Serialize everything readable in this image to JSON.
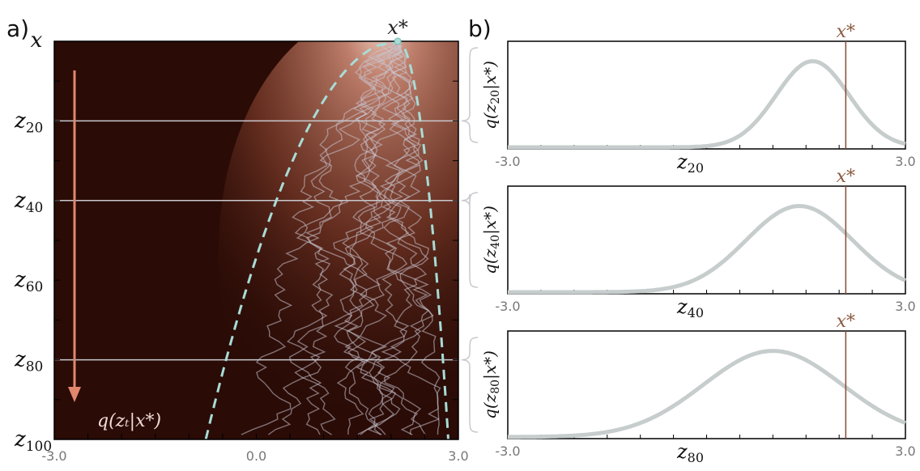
{
  "chart_data": [
    {
      "type": "heatmap",
      "panel_label": "a)",
      "x_tick_labels": [
        "-3.0",
        "0.0",
        "3.0"
      ],
      "xlim": [
        -3.0,
        3.0
      ],
      "y_labels": {
        "top": "x",
        "ticks": [
          {
            "t": 20,
            "label": "z",
            "sub": "20"
          },
          {
            "t": 40,
            "label": "z",
            "sub": "40"
          },
          {
            "t": 60,
            "label": "z",
            "sub": "60"
          },
          {
            "t": 80,
            "label": "z",
            "sub": "80"
          },
          {
            "t": 100,
            "label": "z",
            "sub": "100"
          }
        ]
      },
      "ylim": [
        0,
        100
      ],
      "x_star_label": "x*",
      "x_star_value": 2.1,
      "annotation": "q(z_t|x*)",
      "horizontal_lines_at_t": [
        20,
        40,
        80
      ],
      "envelope": {
        "top_x": 2.1,
        "left_x_at_100": -0.75,
        "right_x_at_100": 2.85
      },
      "colors": {
        "background": "#2a0b06",
        "glow": "#b9745f",
        "envelope": "#a8dcd6",
        "arrow": "#e0876e",
        "trajectory": "#c8c4cf"
      }
    },
    {
      "type": "line",
      "panel_label": "b)",
      "x_tick_labels": [
        "-3.0",
        "3.0"
      ],
      "xlim": [
        -3.0,
        3.0
      ],
      "x_star_label": "x*",
      "x_star_value": 2.1,
      "colors": {
        "curve": "#c6cdcc",
        "x_star_line": "#8a4a30",
        "x_star_text": "#8a5a40"
      },
      "panels": [
        {
          "xlabel": "z",
          "xlabel_sub": "20",
          "ylabel": "q(z20|x*)",
          "mean": 1.6,
          "std": 0.55
        },
        {
          "xlabel": "z",
          "xlabel_sub": "40",
          "ylabel": "q(z40|x*)",
          "mean": 1.4,
          "std": 0.8
        },
        {
          "xlabel": "z",
          "xlabel_sub": "80",
          "ylabel": "q(z80|x*)",
          "mean": 1.0,
          "std": 1.05
        }
      ]
    }
  ]
}
